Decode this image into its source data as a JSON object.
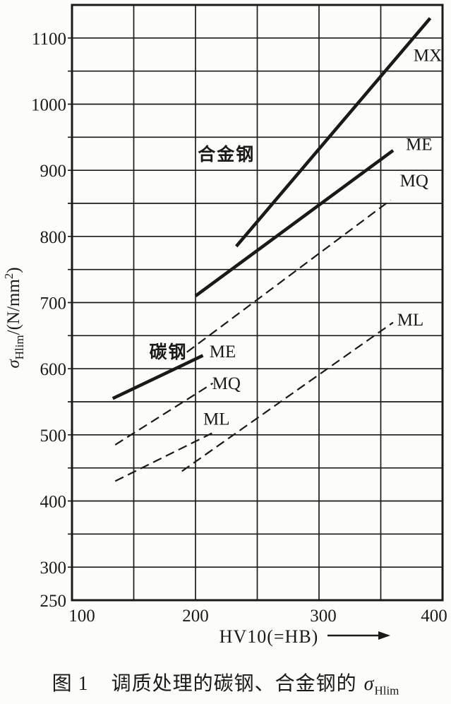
{
  "figure": {
    "caption": {
      "prefix": "图 1",
      "body": "调质处理的碳钢、合金钢的",
      "sigma": "σ",
      "sigma_sub": "Hlim"
    }
  },
  "chart_data": {
    "type": "line",
    "title": "图 1 调质处理的碳钢、合金钢的 σHlim",
    "xlabel": "HV10(=HB)",
    "ylabel": "σHlim/(N/mm²)",
    "ylabel_parts": {
      "sym": "σ",
      "sub": "Hlim",
      "mid": "/(N/mm",
      "sup": "2",
      "end": ")"
    },
    "xlim": [
      100,
      400
    ],
    "ylim": [
      250,
      1150
    ],
    "x_ticks": [
      100,
      200,
      300,
      400
    ],
    "y_ticks": [
      250,
      300,
      400,
      500,
      600,
      700,
      800,
      900,
      1000,
      1100
    ],
    "grid": {
      "x_step": 50,
      "y_step": 50,
      "on": true
    },
    "legend_position": "inline-labels",
    "x_unit": "HV10",
    "y_unit": "N/mm²",
    "groups": [
      {
        "name": "合金钢",
        "slug": "alloy-steel",
        "label_pos": [
          225,
          925
        ],
        "series": [
          {
            "grade": "MX",
            "line": "solid",
            "points": [
              [
                233,
                785
              ],
              [
                390,
                1130
              ]
            ],
            "label_pos": [
              388,
              1075
            ]
          },
          {
            "grade": "ME",
            "line": "solid",
            "points": [
              [
                200,
                710
              ],
              [
                360,
                930
              ]
            ],
            "label_pos": [
              381,
              940
            ]
          },
          {
            "grade": "MQ",
            "line": "dashed",
            "points": [
              [
                193,
                625
              ],
              [
                358,
                855
              ]
            ],
            "label_pos": [
              377,
              885
            ]
          },
          {
            "grade": "ML",
            "line": "dashed",
            "points": [
              [
                189,
                445
              ],
              [
                360,
                670
              ]
            ],
            "label_pos": [
              374,
              675
            ]
          }
        ]
      },
      {
        "name": "碳钢",
        "slug": "carbon-steel",
        "label_pos": [
          178,
          626
        ],
        "series": [
          {
            "grade": "ME",
            "line": "solid",
            "points": [
              [
                133,
                555
              ],
              [
                206,
                620
              ]
            ],
            "label_pos": [
              222,
              627
            ]
          },
          {
            "grade": "MQ",
            "line": "dashed",
            "points": [
              [
                135,
                485
              ],
              [
                214,
                578
              ]
            ],
            "label_pos": [
              225,
              579
            ]
          },
          {
            "grade": "ML",
            "line": "dashed",
            "points": [
              [
                135,
                430
              ],
              [
                216,
                505
              ]
            ],
            "label_pos": [
              217,
              525
            ]
          }
        ]
      }
    ],
    "colors": {
      "ink": "#1b1a18",
      "paper": "#fcfcfa"
    }
  }
}
